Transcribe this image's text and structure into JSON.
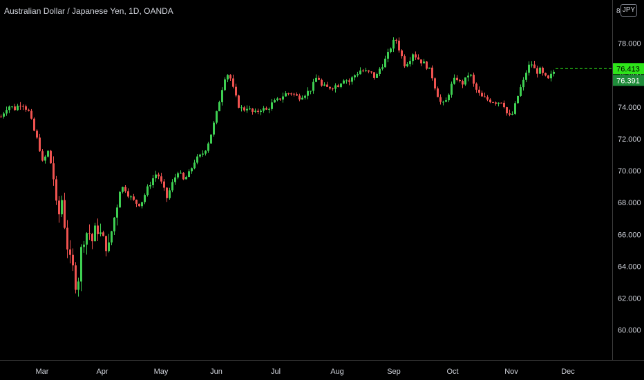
{
  "title": "Australian Dollar / Japanese Yen, 1D, OANDA",
  "currency_badge": "JPY",
  "top_tick": "8",
  "price_tags": {
    "last": "76.413",
    "previous": "76.391"
  },
  "colors": {
    "up": "#26a69a",
    "up_bright": "#3ecf52",
    "down": "#ef5350",
    "tag_green": "#2ee51a",
    "tag_text": "#000000",
    "axis_text": "#d1d4dc",
    "axis_line": "#3a3a3a"
  },
  "chart_data": {
    "type": "candlestick",
    "title": "Australian Dollar / Japanese Yen, 1D, OANDA",
    "symbol": "AUDJPY",
    "interval": "1D",
    "source": "OANDA",
    "ylim": [
      58.0,
      80.0
    ],
    "y_ticks": [
      "60.000",
      "62.000",
      "64.000",
      "66.000",
      "68.000",
      "70.000",
      "72.000",
      "74.000",
      "76.000",
      "78.000"
    ],
    "x_ticks": [
      "Mar",
      "Apr",
      "May",
      "Jun",
      "Jul",
      "Aug",
      "Sep",
      "Oct",
      "Nov",
      "Dec"
    ],
    "last_price": 76.413,
    "previous_close": 76.391,
    "grid": false,
    "legend": "none",
    "monthly_approx": [
      {
        "month": "Feb",
        "open": 73.8,
        "close": 73.4,
        "high": 74.5,
        "low": 72.8
      },
      {
        "month": "Mar",
        "open": 73.4,
        "close": 66.8,
        "high": 74.2,
        "low": 59.9
      },
      {
        "month": "Apr",
        "open": 66.8,
        "close": 68.4,
        "high": 69.5,
        "low": 64.8
      },
      {
        "month": "May",
        "open": 68.4,
        "close": 71.8,
        "high": 72.6,
        "low": 67.6
      },
      {
        "month": "Jun",
        "open": 71.8,
        "close": 74.4,
        "high": 76.8,
        "low": 72.4
      },
      {
        "month": "Jul",
        "open": 74.4,
        "close": 75.3,
        "high": 76.7,
        "low": 73.8
      },
      {
        "month": "Aug",
        "open": 75.3,
        "close": 78.2,
        "high": 78.4,
        "low": 74.9
      },
      {
        "month": "Sep",
        "open": 78.2,
        "close": 74.3,
        "high": 78.4,
        "low": 73.9
      },
      {
        "month": "Oct",
        "open": 74.3,
        "close": 73.6,
        "high": 76.2,
        "low": 73.1
      },
      {
        "month": "Nov",
        "open": 73.6,
        "close": 76.41,
        "high": 77.1,
        "low": 73.2
      }
    ]
  }
}
